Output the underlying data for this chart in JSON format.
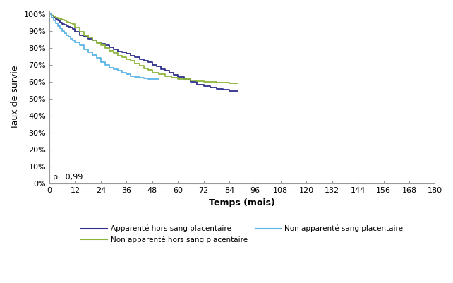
{
  "title": "",
  "xlabel": "Temps (mois)",
  "ylabel": "Taux de survie",
  "xlim": [
    0,
    180
  ],
  "ylim": [
    0,
    1.02
  ],
  "xticks": [
    0,
    12,
    24,
    36,
    48,
    60,
    72,
    84,
    96,
    108,
    120,
    132,
    144,
    156,
    168,
    180
  ],
  "yticks": [
    0,
    0.1,
    0.2,
    0.3,
    0.4,
    0.5,
    0.6,
    0.7,
    0.8,
    0.9,
    1.0
  ],
  "pvalue_text": "p : 0,99",
  "background_color": "#ffffff",
  "curves": {
    "apparente": {
      "label": "Apparenté hors sang placentaire",
      "color": "#2e2e8c",
      "linewidth": 1.3,
      "time": [
        0,
        1,
        2,
        3,
        4,
        5,
        6,
        7,
        8,
        9,
        10,
        11,
        12,
        14,
        16,
        18,
        20,
        22,
        24,
        26,
        28,
        30,
        32,
        34,
        36,
        38,
        40,
        42,
        44,
        46,
        48,
        50,
        52,
        54,
        56,
        58,
        60,
        63,
        66,
        69,
        72,
        75,
        78,
        81,
        84,
        88
      ],
      "survival": [
        1.0,
        0.99,
        0.98,
        0.97,
        0.96,
        0.95,
        0.94,
        0.935,
        0.93,
        0.925,
        0.92,
        0.91,
        0.895,
        0.875,
        0.865,
        0.855,
        0.845,
        0.835,
        0.825,
        0.815,
        0.805,
        0.79,
        0.78,
        0.775,
        0.765,
        0.755,
        0.745,
        0.735,
        0.725,
        0.715,
        0.7,
        0.69,
        0.675,
        0.665,
        0.655,
        0.64,
        0.63,
        0.615,
        0.6,
        0.585,
        0.575,
        0.565,
        0.56,
        0.555,
        0.548,
        0.548
      ]
    },
    "non_apparente_hors": {
      "label": "Non apparenté hors sang placentaire",
      "color": "#8db53c",
      "linewidth": 1.3,
      "time": [
        0,
        1,
        2,
        3,
        4,
        5,
        6,
        7,
        8,
        9,
        10,
        11,
        12,
        14,
        16,
        18,
        20,
        22,
        24,
        26,
        28,
        30,
        32,
        34,
        36,
        38,
        40,
        42,
        44,
        46,
        48,
        51,
        54,
        57,
        60,
        63,
        66,
        69,
        72,
        75,
        78,
        81,
        84,
        88
      ],
      "survival": [
        1.0,
        0.99,
        0.985,
        0.98,
        0.975,
        0.97,
        0.965,
        0.96,
        0.955,
        0.95,
        0.945,
        0.94,
        0.92,
        0.895,
        0.875,
        0.86,
        0.845,
        0.83,
        0.815,
        0.8,
        0.785,
        0.77,
        0.755,
        0.745,
        0.735,
        0.725,
        0.71,
        0.695,
        0.68,
        0.67,
        0.655,
        0.645,
        0.635,
        0.625,
        0.618,
        0.615,
        0.61,
        0.605,
        0.602,
        0.6,
        0.598,
        0.596,
        0.59,
        0.59
      ]
    },
    "non_apparente_sang": {
      "label": "Non apparenté sang placentaire",
      "color": "#5ab4e5",
      "linewidth": 1.3,
      "time": [
        0,
        1,
        2,
        3,
        4,
        5,
        6,
        7,
        8,
        9,
        10,
        11,
        12,
        14,
        16,
        18,
        20,
        22,
        24,
        26,
        28,
        30,
        32,
        34,
        36,
        38,
        40,
        42,
        44,
        46,
        48,
        51
      ],
      "survival": [
        1.0,
        0.98,
        0.96,
        0.945,
        0.93,
        0.915,
        0.9,
        0.885,
        0.875,
        0.865,
        0.855,
        0.845,
        0.835,
        0.815,
        0.79,
        0.775,
        0.76,
        0.74,
        0.715,
        0.7,
        0.685,
        0.675,
        0.665,
        0.655,
        0.645,
        0.635,
        0.63,
        0.625,
        0.62,
        0.618,
        0.615,
        0.615
      ]
    }
  }
}
